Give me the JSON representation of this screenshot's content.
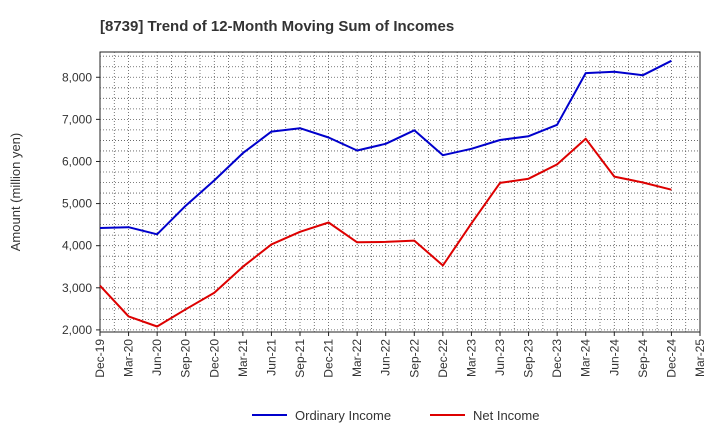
{
  "chart_data": {
    "type": "line",
    "title": "[8739]  Trend of 12-Month Moving Sum of Incomes",
    "xlabel": "",
    "ylabel": "Amount (million yen)",
    "ylim": [
      1950,
      8600
    ],
    "yticks": [
      2000,
      3000,
      4000,
      5000,
      6000,
      7000,
      8000
    ],
    "ytick_labels": [
      "2,000",
      "3,000",
      "4,000",
      "5,000",
      "6,000",
      "7,000",
      "8,000"
    ],
    "grid": true,
    "legend_position": "bottom-center",
    "categories": [
      "Dec-19",
      "Mar-20",
      "Jun-20",
      "Sep-20",
      "Dec-20",
      "Mar-21",
      "Jun-21",
      "Sep-21",
      "Dec-21",
      "Mar-22",
      "Jun-22",
      "Sep-22",
      "Dec-22",
      "Mar-23",
      "Jun-23",
      "Sep-23",
      "Dec-23",
      "Mar-24",
      "Jun-24",
      "Sep-24",
      "Dec-24",
      "Mar-25"
    ],
    "series": [
      {
        "name": "Ordinary Income",
        "color": "#0000cc",
        "values": [
          4420,
          4440,
          4270,
          4950,
          5550,
          6200,
          6710,
          6790,
          6570,
          6260,
          6420,
          6740,
          6150,
          6300,
          6510,
          6600,
          6870,
          8100,
          8130,
          8050,
          8390,
          null
        ]
      },
      {
        "name": "Net Income",
        "color": "#dd0000",
        "values": [
          3050,
          2320,
          2080,
          2490,
          2880,
          3500,
          4030,
          4330,
          4550,
          4080,
          4090,
          4120,
          3530,
          4530,
          5490,
          5590,
          5930,
          6540,
          5640,
          5500,
          5330,
          null
        ]
      }
    ]
  }
}
